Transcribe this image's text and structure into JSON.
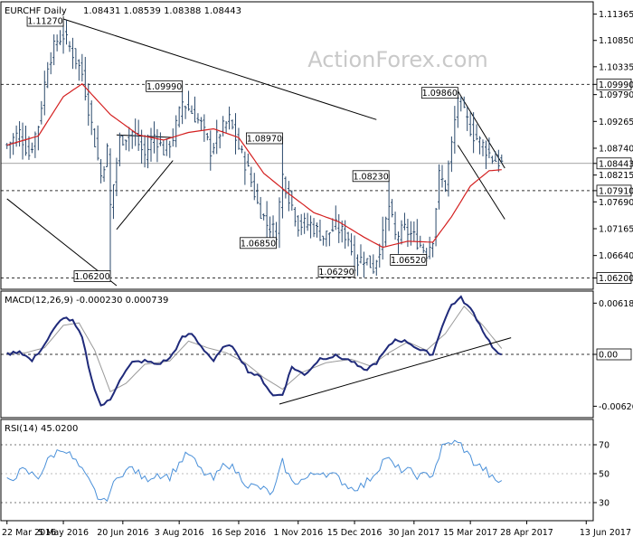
{
  "chart_data": [
    {
      "type": "candlestick",
      "panel": "price",
      "symbol": "EURCHF",
      "timeframe": "Daily",
      "ohlc_header": {
        "open": "1.08431",
        "high": "1.08539",
        "low": "1.08388",
        "close": "1.08443"
      },
      "title_text": "EURCHF Daily",
      "values_text": "1.08431 1.08539 1.08388 1.08443",
      "watermark": "ActionForex.com",
      "ylim": [
        1.0605,
        1.115
      ],
      "yticks": [
        {
          "value": 1.11365,
          "label": "1.11365"
        },
        {
          "value": 1.1085,
          "label": "1.10850"
        },
        {
          "value": 1.10335,
          "label": "1.10335"
        },
        {
          "value": 1.0979,
          "label": "1.09790"
        },
        {
          "value": 1.09265,
          "label": "1.09265"
        },
        {
          "value": 1.0874,
          "label": "1.08740"
        },
        {
          "value": 1.08215,
          "label": "1.08215"
        },
        {
          "value": 1.0769,
          "label": "1.07690"
        },
        {
          "value": 1.07165,
          "label": "1.07165"
        },
        {
          "value": 1.0664,
          "label": "1.06640"
        }
      ],
      "highlight_ticks": [
        {
          "value": 1.0999,
          "label": "1.09990"
        },
        {
          "value": 1.08443,
          "label": "1.08443"
        },
        {
          "value": 1.0791,
          "label": "1.07910"
        },
        {
          "value": 1.062,
          "label": "1.06200"
        }
      ],
      "annotations": [
        {
          "label": "1.11270",
          "date_index": 18,
          "value": 1.1127
        },
        {
          "label": "1.09990",
          "date_index": 56,
          "value": 1.0999
        },
        {
          "label": "1.08970",
          "date_index": 88,
          "value": 1.0897
        },
        {
          "label": "1.06850",
          "date_index": 86,
          "value": 1.0685
        },
        {
          "label": "1.06200",
          "date_index": 33,
          "value": 1.062
        },
        {
          "label": "1.08230",
          "date_index": 122,
          "value": 1.0823
        },
        {
          "label": "1.06290",
          "date_index": 111,
          "value": 1.0629
        },
        {
          "label": "1.06520",
          "date_index": 134,
          "value": 1.0652
        },
        {
          "label": "1.09860",
          "date_index": 144,
          "value": 1.0986
        }
      ],
      "horizontal_lines": [
        1.0999,
        1.0791,
        1.062
      ],
      "series": [
        {
          "name": "EURCHF",
          "kind": "ohlc"
        },
        {
          "name": "SMA",
          "kind": "line",
          "color": "#d42020"
        }
      ],
      "ohlc_color": "#2b4a6c",
      "anchors": [
        {
          "i": 0,
          "v": 1.088
        },
        {
          "i": 4,
          "v": 1.0905
        },
        {
          "i": 7,
          "v": 1.0862
        },
        {
          "i": 10,
          "v": 1.092
        },
        {
          "i": 13,
          "v": 1.104
        },
        {
          "i": 16,
          "v": 1.1085
        },
        {
          "i": 18,
          "v": 1.1095
        },
        {
          "i": 21,
          "v": 1.106
        },
        {
          "i": 24,
          "v": 1.102
        },
        {
          "i": 27,
          "v": 1.092
        },
        {
          "i": 30,
          "v": 1.082
        },
        {
          "i": 32,
          "v": 1.087
        },
        {
          "i": 33,
          "v": 1.076
        },
        {
          "i": 36,
          "v": 1.089
        },
        {
          "i": 40,
          "v": 1.0905
        },
        {
          "i": 44,
          "v": 1.086
        },
        {
          "i": 47,
          "v": 1.09
        },
        {
          "i": 50,
          "v": 1.087
        },
        {
          "i": 53,
          "v": 1.0895
        },
        {
          "i": 56,
          "v": 1.0965
        },
        {
          "i": 59,
          "v": 1.0945
        },
        {
          "i": 62,
          "v": 1.092
        },
        {
          "i": 65,
          "v": 1.087
        },
        {
          "i": 68,
          "v": 1.0905
        },
        {
          "i": 71,
          "v": 1.093
        },
        {
          "i": 74,
          "v": 1.0875
        },
        {
          "i": 77,
          "v": 1.083
        },
        {
          "i": 80,
          "v": 1.0765
        },
        {
          "i": 83,
          "v": 1.0725
        },
        {
          "i": 86,
          "v": 1.071
        },
        {
          "i": 88,
          "v": 1.082
        },
        {
          "i": 90,
          "v": 1.078
        },
        {
          "i": 93,
          "v": 1.0725
        },
        {
          "i": 97,
          "v": 1.0725
        },
        {
          "i": 101,
          "v": 1.07
        },
        {
          "i": 105,
          "v": 1.072
        },
        {
          "i": 109,
          "v": 1.07
        },
        {
          "i": 111,
          "v": 1.065
        },
        {
          "i": 114,
          "v": 1.066
        },
        {
          "i": 117,
          "v": 1.064
        },
        {
          "i": 120,
          "v": 1.07
        },
        {
          "i": 122,
          "v": 1.076
        },
        {
          "i": 124,
          "v": 1.07
        },
        {
          "i": 127,
          "v": 1.0715
        },
        {
          "i": 130,
          "v": 1.07
        },
        {
          "i": 134,
          "v": 1.067
        },
        {
          "i": 136,
          "v": 1.07
        },
        {
          "i": 138,
          "v": 1.082
        },
        {
          "i": 140,
          "v": 1.08
        },
        {
          "i": 142,
          "v": 1.088
        },
        {
          "i": 144,
          "v": 1.0975
        },
        {
          "i": 146,
          "v": 1.094
        },
        {
          "i": 149,
          "v": 1.09
        },
        {
          "i": 152,
          "v": 1.088
        },
        {
          "i": 155,
          "v": 1.0855
        },
        {
          "i": 158,
          "v": 1.0844
        }
      ],
      "sma_anchors": [
        {
          "i": 0,
          "v": 1.088
        },
        {
          "i": 10,
          "v": 1.0898
        },
        {
          "i": 18,
          "v": 1.0975
        },
        {
          "i": 24,
          "v": 1.1
        },
        {
          "i": 33,
          "v": 1.094
        },
        {
          "i": 42,
          "v": 1.09
        },
        {
          "i": 50,
          "v": 1.089
        },
        {
          "i": 58,
          "v": 1.0905
        },
        {
          "i": 66,
          "v": 1.0912
        },
        {
          "i": 74,
          "v": 1.0895
        },
        {
          "i": 82,
          "v": 1.0825
        },
        {
          "i": 90,
          "v": 1.0785
        },
        {
          "i": 98,
          "v": 1.0748
        },
        {
          "i": 106,
          "v": 1.073
        },
        {
          "i": 114,
          "v": 1.07
        },
        {
          "i": 120,
          "v": 1.068
        },
        {
          "i": 128,
          "v": 1.0692
        },
        {
          "i": 136,
          "v": 1.069
        },
        {
          "i": 142,
          "v": 1.074
        },
        {
          "i": 148,
          "v": 1.08
        },
        {
          "i": 154,
          "v": 1.083
        },
        {
          "i": 158,
          "v": 1.0832
        }
      ]
    },
    {
      "type": "line",
      "panel": "macd",
      "title_text": "MACD(12,26,9) -0.000230 0.000739",
      "ylim": [
        -0.0072,
        0.0072
      ],
      "yticks": [
        {
          "value": 0.00618,
          "label": "0.00618"
        },
        {
          "value": 0.0,
          "label": "0.00"
        },
        {
          "value": -0.00626,
          "label": "-0.00626"
        }
      ],
      "zero_label": "0.00",
      "series": [
        {
          "name": "MACD",
          "kind": "line",
          "color": "#1f2a7a"
        },
        {
          "name": "Signal",
          "kind": "line",
          "color": "#999999"
        }
      ],
      "macd_anchors": [
        {
          "i": 0,
          "v": 0.0
        },
        {
          "i": 4,
          "v": 0.0004
        },
        {
          "i": 8,
          "v": -0.0008
        },
        {
          "i": 12,
          "v": 0.0012
        },
        {
          "i": 15,
          "v": 0.003
        },
        {
          "i": 18,
          "v": 0.0045
        },
        {
          "i": 21,
          "v": 0.004
        },
        {
          "i": 24,
          "v": 0.002
        },
        {
          "i": 27,
          "v": -0.003
        },
        {
          "i": 30,
          "v": -0.0062
        },
        {
          "i": 33,
          "v": -0.0055
        },
        {
          "i": 36,
          "v": -0.003
        },
        {
          "i": 40,
          "v": -0.001
        },
        {
          "i": 44,
          "v": -0.0008
        },
        {
          "i": 48,
          "v": -0.0012
        },
        {
          "i": 52,
          "v": -0.0005
        },
        {
          "i": 56,
          "v": 0.002
        },
        {
          "i": 59,
          "v": 0.0025
        },
        {
          "i": 62,
          "v": 0.001
        },
        {
          "i": 66,
          "v": -0.0008
        },
        {
          "i": 70,
          "v": 0.0012
        },
        {
          "i": 73,
          "v": 0.0005
        },
        {
          "i": 77,
          "v": -0.002
        },
        {
          "i": 81,
          "v": -0.0028
        },
        {
          "i": 85,
          "v": -0.005
        },
        {
          "i": 88,
          "v": -0.0048
        },
        {
          "i": 91,
          "v": -0.0015
        },
        {
          "i": 95,
          "v": -0.0025
        },
        {
          "i": 100,
          "v": -0.0005
        },
        {
          "i": 105,
          "v": -0.0002
        },
        {
          "i": 110,
          "v": -0.0008
        },
        {
          "i": 114,
          "v": -0.002
        },
        {
          "i": 118,
          "v": -0.001
        },
        {
          "i": 121,
          "v": 0.0005
        },
        {
          "i": 124,
          "v": 0.0018
        },
        {
          "i": 128,
          "v": 0.0015
        },
        {
          "i": 132,
          "v": 0.0005
        },
        {
          "i": 136,
          "v": 0.0
        },
        {
          "i": 139,
          "v": 0.0035
        },
        {
          "i": 142,
          "v": 0.006
        },
        {
          "i": 145,
          "v": 0.0068
        },
        {
          "i": 149,
          "v": 0.005
        },
        {
          "i": 153,
          "v": 0.0022
        },
        {
          "i": 156,
          "v": 0.0004
        },
        {
          "i": 158,
          "v": -0.0002
        }
      ],
      "signal_anchors": [
        {
          "i": 0,
          "v": 0.0002
        },
        {
          "i": 6,
          "v": 0.0002
        },
        {
          "i": 12,
          "v": 0.0008
        },
        {
          "i": 18,
          "v": 0.0035
        },
        {
          "i": 23,
          "v": 0.0038
        },
        {
          "i": 28,
          "v": 0.0005
        },
        {
          "i": 33,
          "v": -0.0045
        },
        {
          "i": 38,
          "v": -0.0035
        },
        {
          "i": 44,
          "v": -0.0012
        },
        {
          "i": 52,
          "v": -0.0008
        },
        {
          "i": 58,
          "v": 0.0016
        },
        {
          "i": 64,
          "v": 0.0008
        },
        {
          "i": 70,
          "v": 0.0002
        },
        {
          "i": 76,
          "v": -0.001
        },
        {
          "i": 82,
          "v": -0.0028
        },
        {
          "i": 88,
          "v": -0.0042
        },
        {
          "i": 94,
          "v": -0.0022
        },
        {
          "i": 102,
          "v": -0.001
        },
        {
          "i": 110,
          "v": -0.0006
        },
        {
          "i": 116,
          "v": -0.0014
        },
        {
          "i": 122,
          "v": 0.0002
        },
        {
          "i": 128,
          "v": 0.0015
        },
        {
          "i": 134,
          "v": 0.0005
        },
        {
          "i": 140,
          "v": 0.0025
        },
        {
          "i": 146,
          "v": 0.0058
        },
        {
          "i": 152,
          "v": 0.0035
        },
        {
          "i": 158,
          "v": 0.0007
        }
      ],
      "trendline": [
        {
          "i": 87,
          "v": -0.006
        },
        {
          "i": 161,
          "v": 0.002
        }
      ]
    },
    {
      "type": "line",
      "panel": "rsi",
      "title_text": "RSI(14) 45.0200",
      "ylim": [
        20,
        85
      ],
      "yticks": [
        {
          "value": 70,
          "label": "70"
        },
        {
          "value": 50,
          "label": "50"
        },
        {
          "value": 30,
          "label": "30"
        }
      ],
      "series": [
        {
          "name": "RSI",
          "kind": "line",
          "color": "#4a90d9"
        }
      ],
      "rsi_anchors": [
        {
          "i": 0,
          "v": 45
        },
        {
          "i": 5,
          "v": 52
        },
        {
          "i": 10,
          "v": 48
        },
        {
          "i": 14,
          "v": 62
        },
        {
          "i": 18,
          "v": 68
        },
        {
          "i": 22,
          "v": 58
        },
        {
          "i": 26,
          "v": 45
        },
        {
          "i": 29,
          "v": 34
        },
        {
          "i": 31,
          "v": 30
        },
        {
          "i": 33,
          "v": 38
        },
        {
          "i": 36,
          "v": 50
        },
        {
          "i": 40,
          "v": 54
        },
        {
          "i": 44,
          "v": 46
        },
        {
          "i": 48,
          "v": 50
        },
        {
          "i": 52,
          "v": 48
        },
        {
          "i": 56,
          "v": 60
        },
        {
          "i": 58,
          "v": 64
        },
        {
          "i": 62,
          "v": 52
        },
        {
          "i": 66,
          "v": 46
        },
        {
          "i": 70,
          "v": 58
        },
        {
          "i": 73,
          "v": 52
        },
        {
          "i": 77,
          "v": 42
        },
        {
          "i": 81,
          "v": 40
        },
        {
          "i": 85,
          "v": 36
        },
        {
          "i": 88,
          "v": 58
        },
        {
          "i": 91,
          "v": 44
        },
        {
          "i": 95,
          "v": 46
        },
        {
          "i": 100,
          "v": 52
        },
        {
          "i": 105,
          "v": 48
        },
        {
          "i": 110,
          "v": 40
        },
        {
          "i": 114,
          "v": 42
        },
        {
          "i": 118,
          "v": 52
        },
        {
          "i": 121,
          "v": 62
        },
        {
          "i": 124,
          "v": 54
        },
        {
          "i": 128,
          "v": 52
        },
        {
          "i": 132,
          "v": 48
        },
        {
          "i": 136,
          "v": 50
        },
        {
          "i": 139,
          "v": 68
        },
        {
          "i": 142,
          "v": 72
        },
        {
          "i": 145,
          "v": 70
        },
        {
          "i": 149,
          "v": 58
        },
        {
          "i": 153,
          "v": 52
        },
        {
          "i": 156,
          "v": 44
        },
        {
          "i": 158,
          "v": 45
        }
      ]
    }
  ],
  "x_axis": {
    "count": 159,
    "labels": [
      {
        "label": "22 Mar 2016",
        "i": 0
      },
      {
        "label": "5 May 2016",
        "i": 18
      },
      {
        "label": "20 Jun 2016",
        "i": 37
      },
      {
        "label": "3 Aug 2016",
        "i": 55
      },
      {
        "label": "16 Sep 2016",
        "i": 74
      },
      {
        "label": "1 Nov 2016",
        "i": 93
      },
      {
        "label": "15 Dec 2016",
        "i": 111
      },
      {
        "label": "30 Jan 2017",
        "i": 130
      },
      {
        "label": "15 Mar 2017",
        "i": 148
      },
      {
        "label": "28 Apr 2017",
        "i": 166
      },
      {
        "label": "13 Jun 2017",
        "i": 185
      }
    ],
    "label_scale_count": 186
  },
  "trendlines": [
    {
      "from": {
        "i": 18,
        "v": 1.1127
      },
      "to": {
        "i": 118,
        "v": 1.093
      }
    },
    {
      "from": {
        "i": 0,
        "v": 1.0775
      },
      "to": {
        "i": 35,
        "v": 1.0605
      }
    },
    {
      "from": {
        "i": 35,
        "v": 1.09
      },
      "to": {
        "i": 53,
        "v": 1.0895
      }
    },
    {
      "from": {
        "i": 35,
        "v": 1.0715
      },
      "to": {
        "i": 53,
        "v": 1.085
      }
    },
    {
      "from": {
        "i": 144,
        "v": 1.0986
      },
      "to": {
        "i": 159,
        "v": 1.0835
      }
    },
    {
      "from": {
        "i": 144,
        "v": 1.088
      },
      "to": {
        "i": 159,
        "v": 1.0735
      }
    }
  ]
}
